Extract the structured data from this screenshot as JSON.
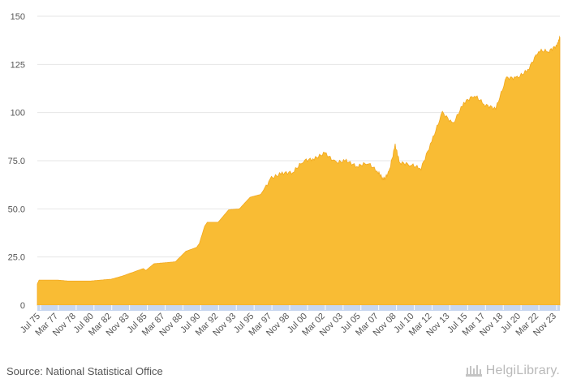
{
  "footer": {
    "source": "Source: National Statistical Office",
    "brand": "HelgiLibrary."
  },
  "colors": {
    "area_fill": "#F9BC34",
    "area_stroke": "#F2A81E",
    "x_band": "#C8D7F0",
    "grid": "#E6E6E6"
  },
  "chart_data": {
    "type": "area",
    "title": "",
    "xlabel": "",
    "ylabel": "",
    "ylim": [
      0,
      150
    ],
    "yticks": [
      "0",
      "25.0",
      "50.0",
      "75.0",
      "100",
      "125",
      "150"
    ],
    "grid": true,
    "legend": "none",
    "xticks": [
      "Jul 75",
      "Mar 77",
      "Nov 78",
      "Jul 80",
      "Mar 82",
      "Nov 83",
      "Jul 85",
      "Mar 87",
      "Nov 88",
      "Jul 90",
      "Mar 92",
      "Nov 93",
      "Jul 95",
      "Mar 97",
      "Nov 98",
      "Jul 00",
      "Mar 02",
      "Nov 03",
      "Jul 05",
      "Mar 07",
      "Nov 08",
      "Jul 10",
      "Mar 12",
      "Nov 13",
      "Jul 15",
      "Mar 17",
      "Nov 18",
      "Jul 20",
      "Mar 22",
      "Nov 23"
    ],
    "series": [
      {
        "name": "",
        "x": [
          "1975-07",
          "1975-09",
          "1976-06",
          "1977-06",
          "1978-06",
          "1979-06",
          "1980-06",
          "1981-06",
          "1982-06",
          "1983-06",
          "1984-06",
          "1985-06",
          "1985-09",
          "1986-06",
          "1987-06",
          "1988-06",
          "1989-06",
          "1990-06",
          "1990-09",
          "1991-03",
          "1991-06",
          "1992-06",
          "1993-06",
          "1994-06",
          "1995-06",
          "1996-06",
          "1997-06",
          "1998-06",
          "1999-06",
          "2000-06",
          "2001-06",
          "2002-06",
          "2003-06",
          "2004-06",
          "2005-06",
          "2006-06",
          "2007-06",
          "2007-12",
          "2008-06",
          "2009-01",
          "2009-06",
          "2010-06",
          "2011-06",
          "2012-06",
          "2013-06",
          "2014-06",
          "2015-06",
          "2016-06",
          "2017-06",
          "2018-06",
          "2019-06",
          "2020-06",
          "2021-06",
          "2022-06",
          "2023-06",
          "2024-03",
          "2024-06"
        ],
        "values": [
          11,
          13,
          13,
          13,
          12.5,
          12.5,
          12.5,
          13,
          13.5,
          15,
          17,
          19,
          18,
          21.5,
          22,
          22.5,
          28,
          30,
          32,
          41,
          43,
          43,
          49.5,
          50,
          56,
          57.5,
          66,
          68.5,
          69,
          75,
          76,
          79,
          74,
          75,
          72,
          74,
          69,
          65,
          69,
          83,
          74,
          73,
          71,
          85,
          100,
          94,
          105,
          109,
          104,
          102,
          118,
          118,
          122,
          132,
          132,
          135,
          139
        ]
      }
    ]
  }
}
